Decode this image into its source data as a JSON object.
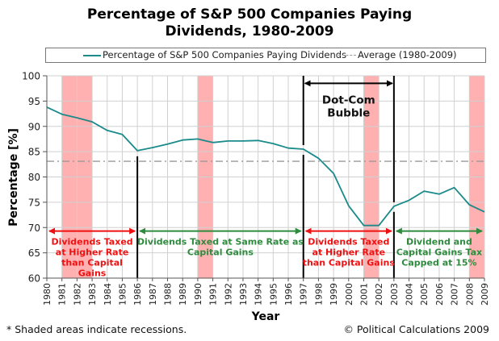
{
  "chart_data": {
    "type": "line",
    "title_line1": "Percentage of S&P 500 Companies Paying",
    "title_line2": "Dividends, 1980-2009",
    "xlabel": "Year",
    "ylabel": "Percentage [%]",
    "xlim": [
      1980,
      2009
    ],
    "ylim": [
      60,
      100
    ],
    "yticks": [
      60,
      65,
      70,
      75,
      80,
      85,
      90,
      95,
      100
    ],
    "xticks": [
      1980,
      1981,
      1982,
      1983,
      1984,
      1985,
      1986,
      1987,
      1988,
      1989,
      1990,
      1991,
      1992,
      1993,
      1994,
      1995,
      1996,
      1997,
      1998,
      1999,
      2000,
      2001,
      2002,
      2003,
      2004,
      2005,
      2006,
      2007,
      2008,
      2009
    ],
    "grid": true,
    "legend_position": "top",
    "series": [
      {
        "name": "Percentage of S&P 500 Companies Paying Dividends",
        "color": "#1a8a8a",
        "x": [
          1980,
          1981,
          1982,
          1983,
          1984,
          1985,
          1986,
          1987,
          1988,
          1989,
          1990,
          1991,
          1992,
          1993,
          1994,
          1995,
          1996,
          1997,
          1998,
          1999,
          2000,
          2001,
          2002,
          2003,
          2004,
          2005,
          2006,
          2007,
          2008,
          2009
        ],
        "values": [
          93.8,
          92.4,
          91.7,
          90.9,
          89.2,
          88.4,
          85.2,
          85.8,
          86.5,
          87.3,
          87.5,
          86.8,
          87.1,
          87.1,
          87.2,
          86.6,
          85.7,
          85.5,
          83.7,
          80.7,
          74.3,
          70.4,
          70.4,
          74.2,
          75.4,
          77.2,
          76.6,
          77.9,
          74.5,
          73.1
        ]
      }
    ],
    "average": {
      "name": "Average (1980-2009)",
      "value": 83.1,
      "color": "#999999"
    },
    "recessions": [
      {
        "start": 1981,
        "end": 1983
      },
      {
        "start": 1990,
        "end": 1991
      },
      {
        "start": 2001,
        "end": 2002
      },
      {
        "start": 2008,
        "end": 2009
      }
    ],
    "recession_color": "#ffb0b0",
    "dividers": [
      1986,
      1997,
      2003
    ],
    "eras": [
      {
        "from": 1980,
        "to": 1986,
        "color": "#ee1111",
        "lines": [
          "Dividends Taxed",
          "at Higher Rate",
          "than Capital",
          "Gains"
        ]
      },
      {
        "from": 1986,
        "to": 1997,
        "color": "#2e8b3e",
        "lines": [
          "Dividends Taxed at Same Rate as",
          "Capital Gains"
        ]
      },
      {
        "from": 1997,
        "to": 2003,
        "color": "#ee1111",
        "lines": [
          "Dividends Taxed",
          "at Higher Rate",
          "than Capital Gains"
        ]
      },
      {
        "from": 2003,
        "to": 2009,
        "color": "#2e8b3e",
        "lines": [
          "Dividend and",
          "Capital Gains Tax",
          "Capped at 15%"
        ]
      }
    ],
    "era_arrow_level": 69.3,
    "annotation": {
      "text_lines": [
        "Dot-Com",
        "Bubble"
      ],
      "from": 1997,
      "to": 2003,
      "level": 98.5
    }
  },
  "footer": {
    "note": "* Shaded areas indicate recessions.",
    "credit": "© Political Calculations 2009"
  }
}
